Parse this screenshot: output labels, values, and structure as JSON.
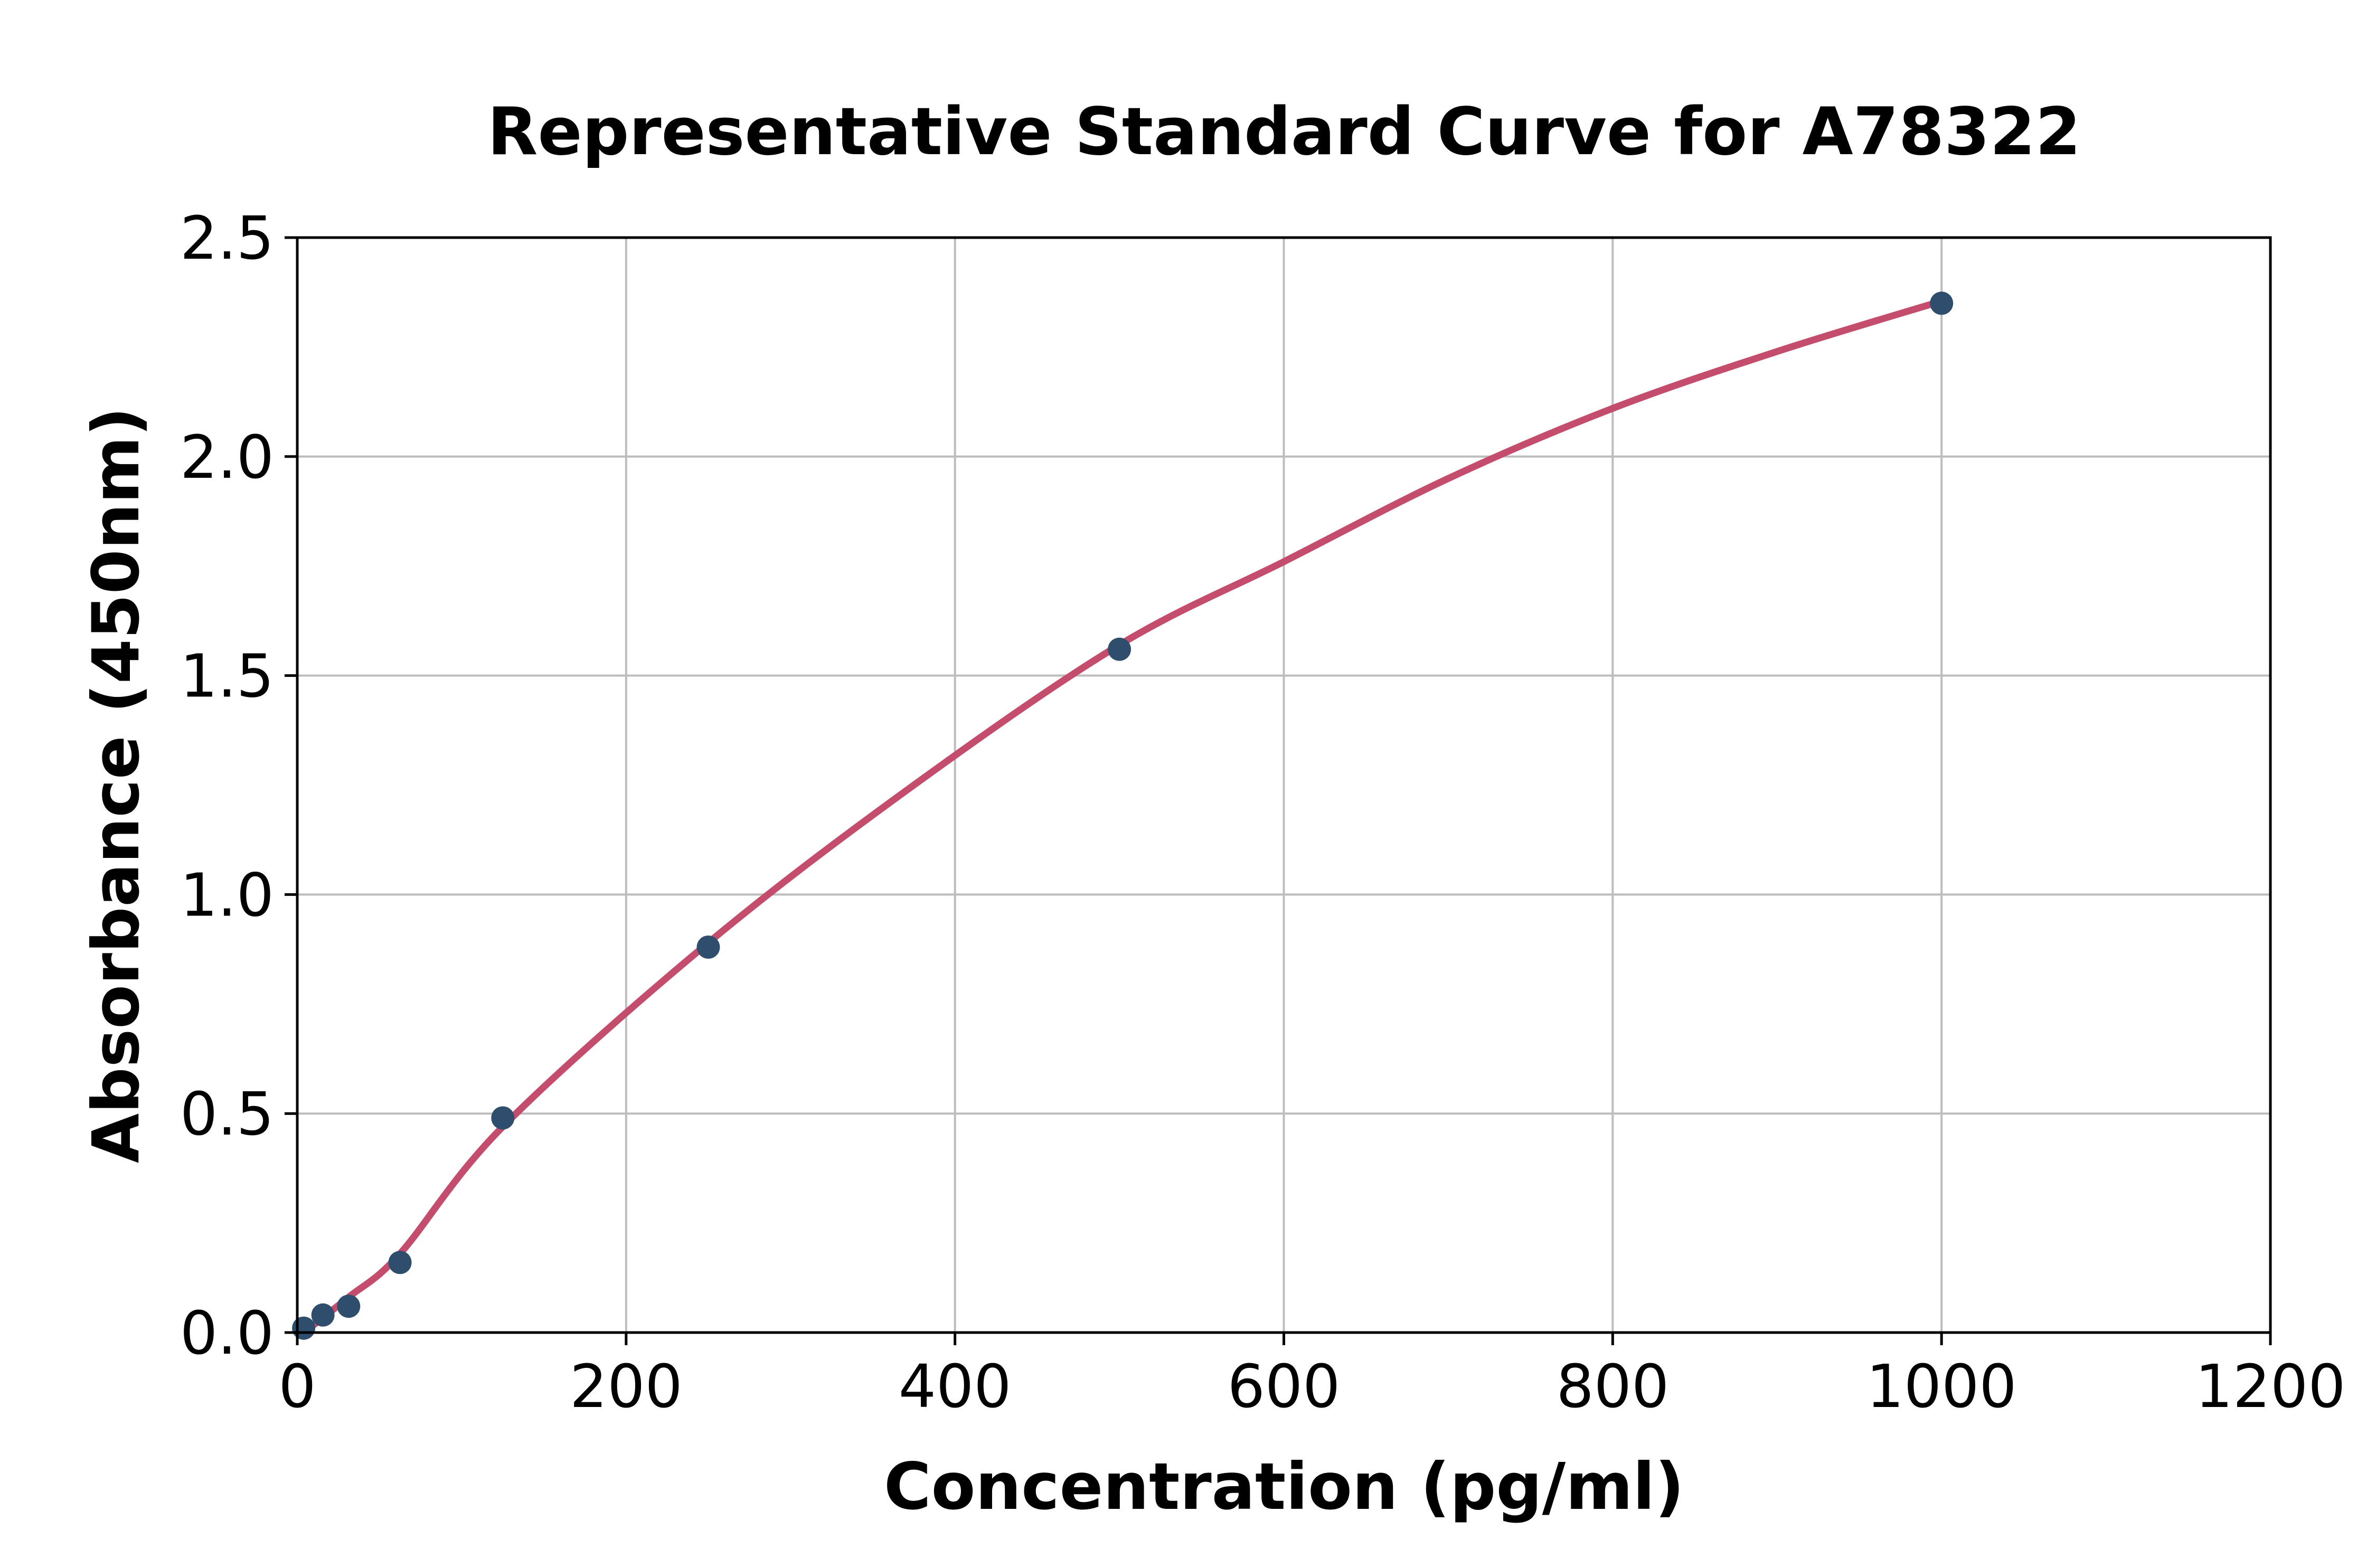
{
  "figure": {
    "background": "#FFFFFF"
  },
  "chart_data": {
    "type": "scatter",
    "title": "Representative Standard Curve for A78322",
    "xlabel": "Concentration (pg/ml)",
    "ylabel": "Absorbance (450nm)",
    "xlim": [
      0,
      1200
    ],
    "ylim": [
      0,
      2.5
    ],
    "xticks": [
      0,
      200,
      400,
      600,
      800,
      1000,
      1200
    ],
    "xtick_labels": [
      "0",
      "200",
      "400",
      "600",
      "800",
      "1000",
      "1200"
    ],
    "yticks": [
      0,
      0.5,
      1.0,
      1.5,
      2.0,
      2.5
    ],
    "ytick_labels": [
      "0.0",
      "0.5",
      "1.0",
      "1.5",
      "2.0",
      "2.5"
    ],
    "grid": true,
    "legend": false,
    "series_name": "standard-curve-fit",
    "points": [
      {
        "x": 3.9,
        "y": 0.01
      },
      {
        "x": 15.6,
        "y": 0.04
      },
      {
        "x": 31.25,
        "y": 0.06
      },
      {
        "x": 62.5,
        "y": 0.16
      },
      {
        "x": 125,
        "y": 0.49
      },
      {
        "x": 250,
        "y": 0.88
      },
      {
        "x": 500,
        "y": 1.56
      },
      {
        "x": 1000,
        "y": 2.35
      }
    ],
    "fit_curve": [
      [
        4,
        0.0
      ],
      [
        31,
        0.08
      ],
      [
        62.5,
        0.18
      ],
      [
        125,
        0.47
      ],
      [
        250,
        0.89
      ],
      [
        375,
        1.25
      ],
      [
        500,
        1.57
      ],
      [
        600,
        1.76
      ],
      [
        700,
        1.95
      ],
      [
        800,
        2.11
      ],
      [
        900,
        2.24
      ],
      [
        1000,
        2.355
      ]
    ],
    "colors": {
      "point": "#2F4E6D",
      "curve": "#C44D6E",
      "grid": "#BDBDBD",
      "spine": "#000000",
      "text": "#000000",
      "background": "#FFFFFF"
    }
  }
}
